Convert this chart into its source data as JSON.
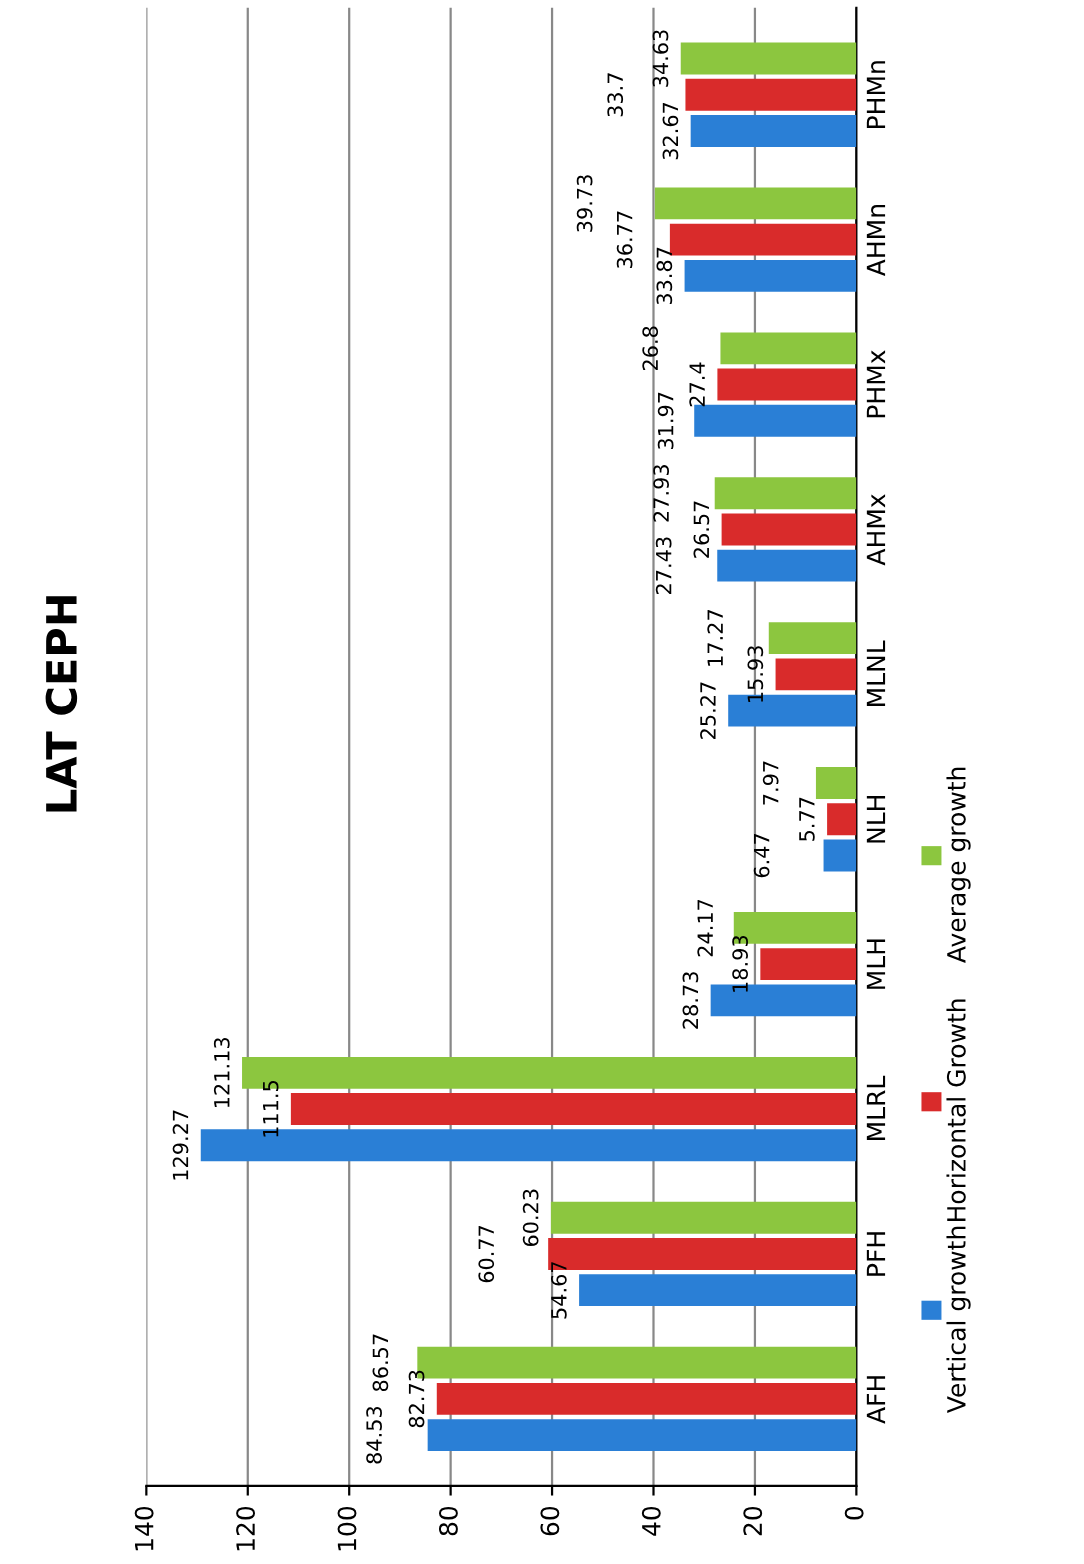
{
  "chart_data": {
    "type": "bar",
    "orientation": "horizontal",
    "title": "LAT CEPH",
    "categories": [
      "PHMn",
      "AHMn",
      "PHMx",
      "AHMx",
      "MLNL",
      "NLH",
      "MLH",
      "MLRL",
      "PFH",
      "AFH"
    ],
    "series": [
      {
        "name": "Vertical growth",
        "color": "#2a7fd6",
        "values": [
          32.67,
          33.87,
          31.97,
          27.43,
          25.27,
          6.47,
          28.73,
          129.27,
          54.67,
          84.53
        ]
      },
      {
        "name": "Horizontal Growth",
        "color": "#d92b2b",
        "values": [
          33.7,
          36.77,
          27.4,
          26.57,
          15.93,
          5.77,
          18.93,
          111.5,
          60.77,
          82.73
        ]
      },
      {
        "name": "Average growth",
        "color": "#8cc63f",
        "values": [
          34.63,
          39.73,
          26.8,
          27.93,
          17.27,
          7.97,
          24.17,
          121.13,
          60.23,
          86.57
        ]
      }
    ],
    "xlim": [
      140,
      0
    ],
    "xticks": [
      140,
      120,
      100,
      80,
      60,
      40,
      20,
      0
    ],
    "grid": "x",
    "legend": "right",
    "data_labels": true
  }
}
